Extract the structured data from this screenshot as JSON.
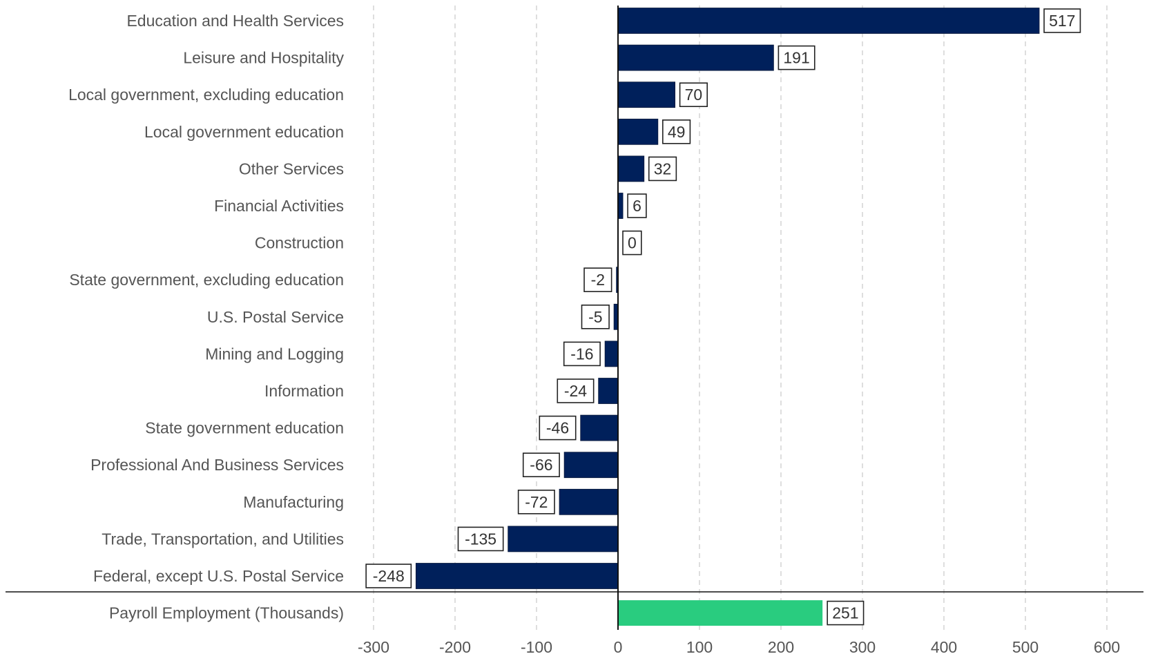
{
  "chart_data": {
    "type": "bar",
    "orientation": "horizontal",
    "categories": [
      "Education and Health Services",
      "Leisure and Hospitality",
      "Local government, excluding education",
      "Local government education",
      "Other Services",
      "Financial Activities",
      "Construction",
      "State government, excluding education",
      "U.S. Postal Service",
      "Mining and Logging",
      "Information",
      "State government education",
      "Professional And Business Services",
      "Manufacturing",
      "Trade, Transportation, and Utilities",
      "Federal, except U.S. Postal Service"
    ],
    "values": [
      517,
      191,
      70,
      49,
      32,
      6,
      0,
      -2,
      -5,
      -16,
      -24,
      -46,
      -66,
      -72,
      -135,
      -248
    ],
    "total": {
      "label": "Payroll Employment (Thousands)",
      "value": 251
    },
    "xlim": [
      -300,
      600
    ],
    "xticks": [
      -300,
      -200,
      -100,
      0,
      100,
      200,
      300,
      400,
      500,
      600
    ],
    "grid": "vertical dashed",
    "legend": "none",
    "bar_color": "#00205b",
    "total_bar_color": "#29cc7f"
  }
}
